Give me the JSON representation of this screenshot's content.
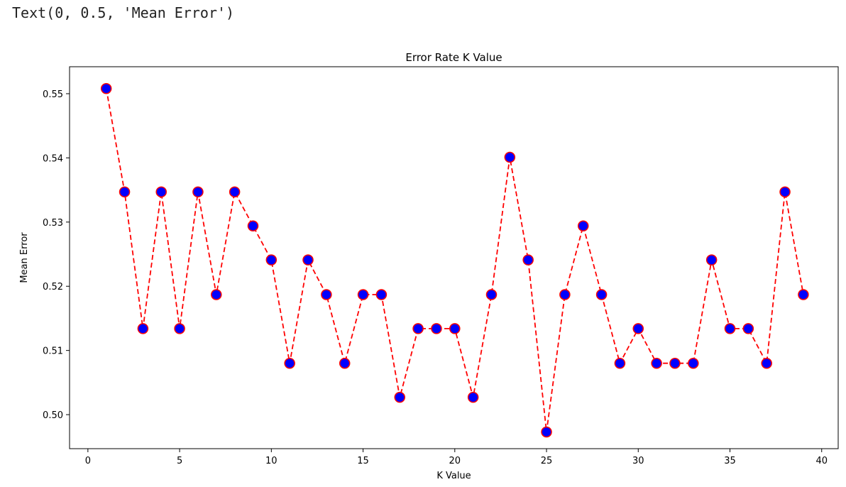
{
  "output": {
    "text": "Text(0, 0.5, 'Mean Error')"
  },
  "chart_data": {
    "type": "line",
    "title": "Error Rate K Value",
    "xlabel": "K Value",
    "ylabel": "Mean Error",
    "xlim": [
      -1,
      40.9
    ],
    "ylim": [
      0.4947,
      0.5542
    ],
    "xticks": [
      0,
      5,
      10,
      15,
      20,
      25,
      30,
      35,
      40
    ],
    "yticks": [
      0.5,
      0.51,
      0.52,
      0.53,
      0.54,
      0.55
    ],
    "ytick_labels": [
      "0.50",
      "0.51",
      "0.52",
      "0.53",
      "0.54",
      "0.55"
    ],
    "grid": false,
    "line_color": "#ff0000",
    "line_style": "dashed",
    "marker": "circle",
    "marker_face_color": "#0000ff",
    "marker_edge_color": "#ff0000",
    "series": [
      {
        "x": [
          1,
          2,
          3,
          4,
          5,
          6,
          7,
          8,
          9,
          10,
          11,
          12,
          13,
          14,
          15,
          16,
          17,
          18,
          19,
          20,
          21,
          22,
          23,
          24,
          25,
          26,
          27,
          28,
          29,
          30,
          31,
          32,
          33,
          34,
          35,
          36,
          37,
          38,
          39
        ],
        "values": [
          0.5508,
          0.5347,
          0.5134,
          0.5347,
          0.5134,
          0.5347,
          0.5187,
          0.5347,
          0.5294,
          0.5241,
          0.508,
          0.5241,
          0.5187,
          0.508,
          0.5187,
          0.5187,
          0.5027,
          0.5134,
          0.5134,
          0.5134,
          0.5027,
          0.5187,
          0.5401,
          0.5241,
          0.4973,
          0.5187,
          0.5294,
          0.5187,
          0.508,
          0.5134,
          0.508,
          0.508,
          0.508,
          0.5241,
          0.5134,
          0.5134,
          0.508,
          0.5347,
          0.5187
        ]
      }
    ]
  }
}
